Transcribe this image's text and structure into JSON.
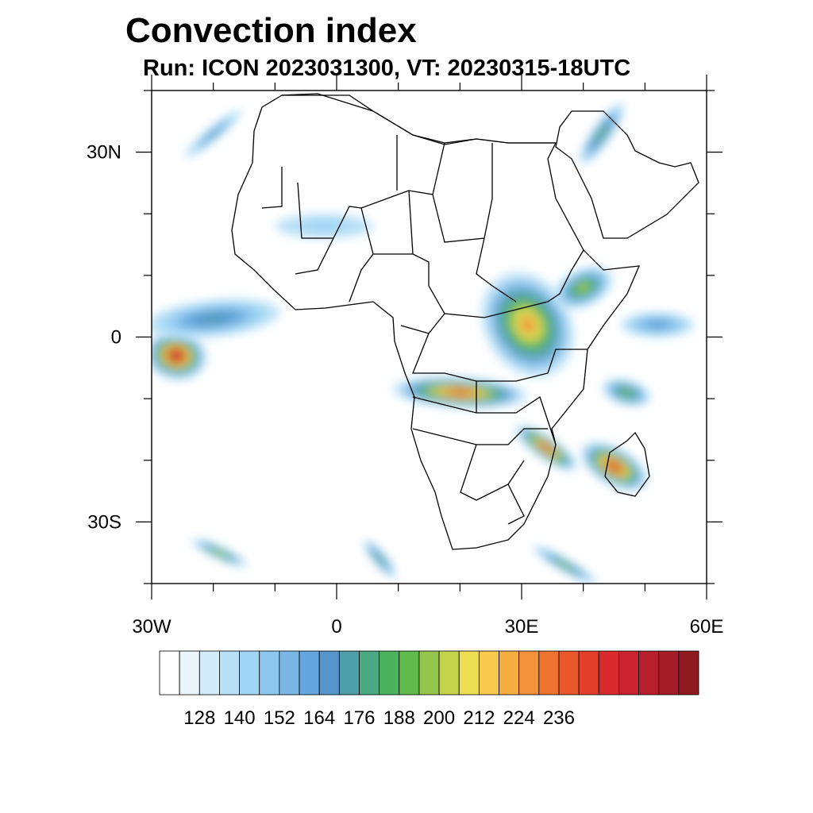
{
  "title": "Convection index",
  "subtitle": "Run: ICON 2023031300,  VT: 20230315-18UTC",
  "axes": {
    "lon_range": [
      -30,
      60
    ],
    "lat_range": [
      -40,
      40
    ],
    "lat_labels": [
      {
        "value": 30,
        "text": "30N"
      },
      {
        "value": 0,
        "text": "0"
      },
      {
        "value": -30,
        "text": "30S"
      }
    ],
    "lon_labels": [
      {
        "value": -30,
        "text": "30W"
      },
      {
        "value": 0,
        "text": "0"
      },
      {
        "value": 30,
        "text": "30E"
      },
      {
        "value": 60,
        "text": "60E"
      }
    ]
  },
  "colorbar": {
    "colors": [
      "#ffffff",
      "#eaf5fc",
      "#d2ebf9",
      "#b8e1f7",
      "#a0d6f5",
      "#8ec7ee",
      "#7ab7e6",
      "#64a6dd",
      "#5696cb",
      "#4d9ea8",
      "#4aa882",
      "#4bb35e",
      "#60bb4c",
      "#94c64c",
      "#c3d44c",
      "#eddf52",
      "#f8ca4e",
      "#f6ae42",
      "#f3923a",
      "#ef7330",
      "#e9572a",
      "#e33f2b",
      "#d92b2d",
      "#c92330",
      "#b81f2c",
      "#a51b27",
      "#8f1a1f"
    ],
    "labels": [
      "128",
      "140",
      "152",
      "164",
      "176",
      "188",
      "200",
      "212",
      "224",
      "236"
    ]
  },
  "fields": [
    {
      "name": "east-africa-band",
      "lon": 31,
      "lat": 2,
      "rlon": 7,
      "rlat": 9,
      "angle": -30,
      "intensity": 0.7
    },
    {
      "name": "west-atlantic-cell",
      "lon": -26,
      "lat": -3,
      "rlon": 5,
      "rlat": 4,
      "angle": 10,
      "intensity": 0.95
    },
    {
      "name": "atlantic-plume",
      "lon": -20,
      "lat": 3,
      "rlon": 11,
      "rlat": 3,
      "angle": -6,
      "intensity": 0.35
    },
    {
      "name": "madagascar-cell",
      "lon": 45,
      "lat": -21,
      "rlon": 6,
      "rlat": 3,
      "angle": 30,
      "intensity": 0.9
    },
    {
      "name": "angola-zambia-band",
      "lon": 20,
      "lat": -9,
      "rlon": 11,
      "rlat": 2.5,
      "angle": 3,
      "intensity": 0.8
    },
    {
      "name": "southeast-africa-band",
      "lon": 34,
      "lat": -18,
      "rlon": 6,
      "rlat": 1.8,
      "angle": 35,
      "intensity": 0.85
    },
    {
      "name": "ethiopia-band",
      "lon": 40,
      "lat": 8,
      "rlon": 5,
      "rlat": 3,
      "angle": -25,
      "intensity": 0.55
    },
    {
      "name": "red-sea-band",
      "lon": 43,
      "lat": 33,
      "rlon": 6,
      "rlat": 1.5,
      "angle": -55,
      "intensity": 0.45
    },
    {
      "name": "comoros-cell",
      "lon": 47,
      "lat": -9,
      "rlon": 4,
      "rlat": 2,
      "angle": 15,
      "intensity": 0.5
    },
    {
      "name": "north-atlantic-streak",
      "lon": -20,
      "lat": 33,
      "rlon": 6,
      "rlat": 1,
      "angle": -40,
      "intensity": 0.35
    },
    {
      "name": "southern-streak-1",
      "lon": -19,
      "lat": -35,
      "rlon": 5,
      "rlat": 1,
      "angle": 25,
      "intensity": 0.55
    },
    {
      "name": "southern-streak-2",
      "lon": 37,
      "lat": -37,
      "rlon": 6,
      "rlat": 1,
      "angle": 30,
      "intensity": 0.5
    },
    {
      "name": "southern-streak-3",
      "lon": 7,
      "lat": -36,
      "rlon": 4,
      "rlat": 1,
      "angle": 50,
      "intensity": 0.45
    },
    {
      "name": "sahara-patches",
      "lon": -2,
      "lat": 18,
      "rlon": 8,
      "rlat": 2,
      "angle": 0,
      "intensity": 0.15
    },
    {
      "name": "indian-ocean-patches",
      "lon": 52,
      "lat": 2,
      "rlon": 6,
      "rlat": 2,
      "angle": 0,
      "intensity": 0.3
    }
  ]
}
